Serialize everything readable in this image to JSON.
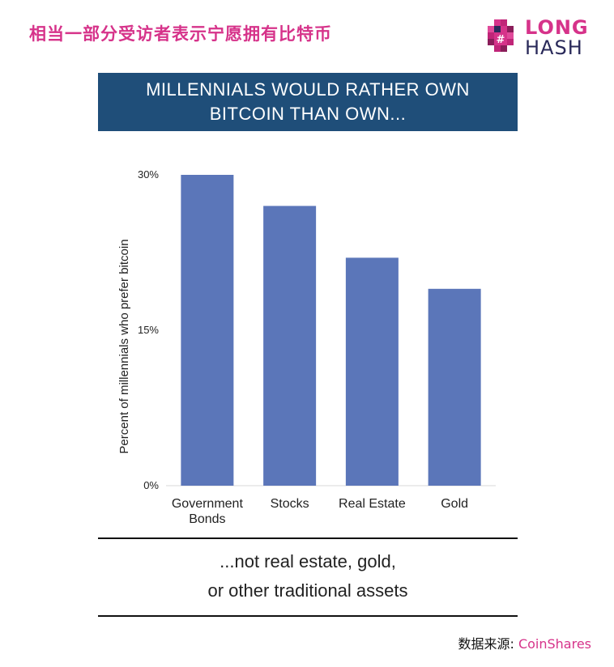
{
  "headline": "相当一部分受访者表示宁愿拥有比特币",
  "logo": {
    "line1": "LONG",
    "line2": "HASH"
  },
  "banner": {
    "line1": "MILLENNIALS WOULD RATHER OWN",
    "line2": "BITCOIN THAN OWN..."
  },
  "caption": {
    "line1": "...not real estate, gold,",
    "line2": "or other traditional assets"
  },
  "source": {
    "label": "数据来源: ",
    "name": "CoinShares"
  },
  "chart_data": {
    "type": "bar",
    "categories": [
      [
        "Government",
        "Bonds"
      ],
      [
        "Stocks"
      ],
      [
        "Real Estate"
      ],
      [
        "Gold"
      ]
    ],
    "values": [
      30,
      27,
      22,
      19
    ],
    "ylabel": "Percent of  millennials who prefer bitcoin",
    "ylim": [
      0,
      30
    ],
    "yticks": [
      {
        "value": 0,
        "label": "0%"
      },
      {
        "value": 15,
        "label": "15%"
      },
      {
        "value": 30,
        "label": "30%"
      }
    ],
    "bar_color": "#5b76b9",
    "grid": false
  }
}
